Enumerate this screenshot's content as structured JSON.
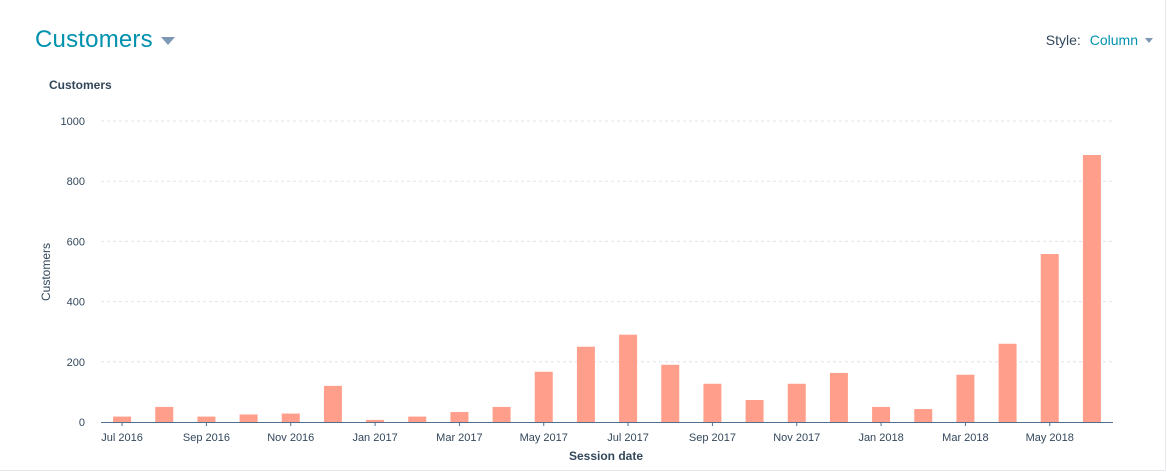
{
  "header": {
    "title": "Customers"
  },
  "style_control": {
    "label": "Style:",
    "value": "Column"
  },
  "chart_heading": "Customers",
  "colors": {
    "bar": "#ff9e8a",
    "accent": "#0091ae",
    "grid": "#dfe3eb",
    "axis": "#516f90"
  },
  "icons": {
    "title_dropdown": "caret-down-icon",
    "style_dropdown": "caret-down-icon"
  },
  "chart_data": {
    "type": "bar",
    "title": "Customers",
    "xlabel": "Session date",
    "ylabel": "Customers",
    "ylim": [
      0,
      1000
    ],
    "yticks": [
      0,
      200,
      400,
      600,
      800,
      1000
    ],
    "grid": true,
    "categories": [
      "Jul 2016",
      "Aug 2016",
      "Sep 2016",
      "Oct 2016",
      "Nov 2016",
      "Dec 2016",
      "Jan 2017",
      "Feb 2017",
      "Mar 2017",
      "Apr 2017",
      "May 2017",
      "Jun 2017",
      "Jul 2017",
      "Aug 2017",
      "Sep 2017",
      "Oct 2017",
      "Nov 2017",
      "Dec 2017",
      "Jan 2018",
      "Feb 2018",
      "Mar 2018",
      "Apr 2018",
      "May 2018",
      "Jun 2018"
    ],
    "xtick_labels": [
      "Jul 2016",
      "Sep 2016",
      "Nov 2016",
      "Jan 2017",
      "Mar 2017",
      "May 2017",
      "Jul 2017",
      "Sep 2017",
      "Nov 2017",
      "Jan 2018",
      "Mar 2018",
      "May 2018"
    ],
    "series": [
      {
        "values": [
          18,
          50,
          18,
          25,
          28,
          120,
          7,
          18,
          33,
          50,
          167,
          250,
          290,
          190,
          127,
          73,
          127,
          163,
          50,
          43,
          157,
          260,
          558,
          887
        ]
      }
    ]
  }
}
